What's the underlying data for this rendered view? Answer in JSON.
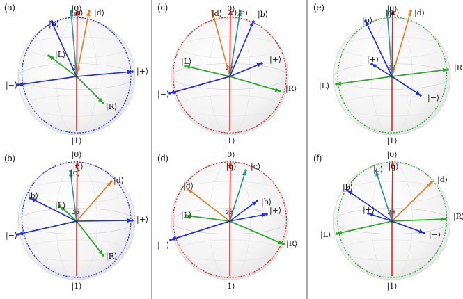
{
  "colors": {
    "red": "#e8231c",
    "blue": "#1f2ee0",
    "green": "#2aa82a",
    "orange": "#e07f2a",
    "teal": "#2f8f93",
    "divider": "#555555"
  },
  "angle_label": "2θ",
  "kets": {
    "zero": "|0⟩",
    "one": "|1⟩",
    "q": "|q⟩",
    "c": "|c⟩",
    "d": "|d⟩",
    "b": "|b⟩",
    "plus": "|+⟩",
    "minus": "|−⟩",
    "L": "|L⟩",
    "R": "|R⟩"
  },
  "panels": [
    {
      "id": "a",
      "tag": "(a)",
      "dotted_color": "blue"
    },
    {
      "id": "b",
      "tag": "(b)",
      "dotted_color": "blue"
    },
    {
      "id": "c",
      "tag": "(c)",
      "dotted_color": "red"
    },
    {
      "id": "d",
      "tag": "(d)",
      "dotted_color": "red"
    },
    {
      "id": "e",
      "tag": "(e)",
      "dotted_color": "green"
    },
    {
      "id": "f",
      "tag": "(f)",
      "dotted_color": "green"
    }
  ]
}
